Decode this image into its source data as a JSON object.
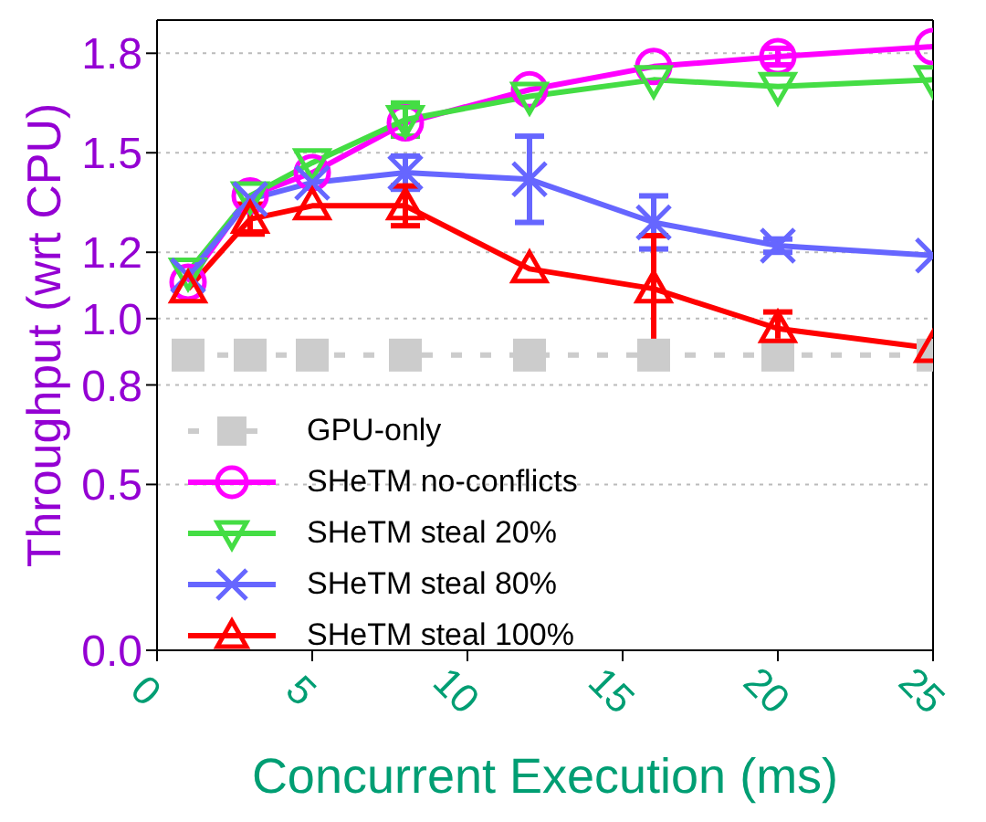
{
  "chart_data": {
    "type": "line",
    "xlabel": "Concurrent Execution (ms)",
    "ylabel": "Throughput (wrt CPU)",
    "x": [
      1,
      3,
      5,
      8,
      12,
      16,
      20,
      25
    ],
    "xlim": [
      0,
      25
    ],
    "xticks": [
      0,
      5,
      10,
      15,
      20,
      25
    ],
    "ylim": [
      0,
      1.9
    ],
    "yticks": [
      {
        "value": 0,
        "label": "0.0"
      },
      {
        "value": 0.5,
        "label": "0.5"
      },
      {
        "value": 0.8,
        "label": "0.8"
      },
      {
        "value": 1,
        "label": "1.0"
      },
      {
        "value": 1.2,
        "label": "1.2"
      },
      {
        "value": 1.5,
        "label": "1.5"
      },
      {
        "value": 1.8,
        "label": "1.8"
      }
    ],
    "grid": "y",
    "legend": "bottom left",
    "series": [
      {
        "name": "GPU-only",
        "color": "#cccccc",
        "marker": "square",
        "line_style": "dashed",
        "values": [
          0.89,
          0.89,
          0.89,
          0.89,
          0.89,
          0.89,
          0.89,
          0.89
        ]
      },
      {
        "name": "SHeTM no-conflicts",
        "color": "#ff00ff",
        "marker": "circle",
        "line_style": "solid",
        "values": [
          1.11,
          1.37,
          1.44,
          1.59,
          1.69,
          1.76,
          1.79,
          1.82
        ],
        "errors": [
          null,
          null,
          null,
          null,
          null,
          null,
          0.025,
          null
        ]
      },
      {
        "name": "SHeTM steal 20%",
        "color": "#44dd44",
        "marker": "triangle-down",
        "line_style": "solid",
        "values": [
          1.14,
          1.37,
          1.47,
          1.6,
          1.67,
          1.72,
          1.7,
          1.72
        ],
        "errors": [
          null,
          null,
          null,
          0.05,
          null,
          null,
          null,
          null
        ]
      },
      {
        "name": "SHeTM steal 80%",
        "color": "#6666ff",
        "marker": "cross",
        "line_style": "solid",
        "values": [
          1.13,
          1.36,
          1.41,
          1.44,
          1.42,
          1.29,
          1.22,
          1.19
        ],
        "errors": [
          null,
          null,
          null,
          0.05,
          0.13,
          0.08,
          0.02,
          null
        ]
      },
      {
        "name": "SHeTM steal 100%",
        "color": "#ff0000",
        "marker": "triangle",
        "line_style": "solid",
        "values": [
          1.09,
          1.3,
          1.34,
          1.34,
          1.15,
          1.09,
          0.97,
          0.91
        ],
        "errors": [
          null,
          0.045,
          null,
          0.06,
          null,
          0.16,
          0.05,
          null
        ]
      }
    ]
  }
}
